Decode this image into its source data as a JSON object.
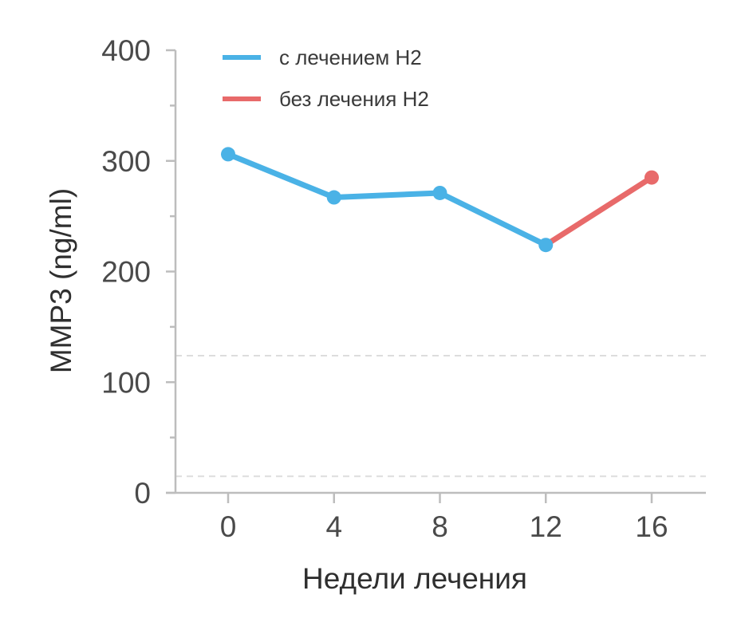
{
  "chart_data": {
    "type": "line",
    "xlabel": "Недели лечения",
    "ylabel": "MMP3 (ng/ml)",
    "x": [
      0,
      4,
      8,
      12,
      16
    ],
    "x_ticks": [
      "0",
      "4",
      "8",
      "12",
      "16"
    ],
    "xlim": [
      -2.3,
      18
    ],
    "ylim": [
      0,
      400
    ],
    "y_ticks": [
      "0",
      "100",
      "200",
      "300",
      "400"
    ],
    "y_tick_values": [
      0,
      100,
      200,
      300,
      400
    ],
    "y_minor_ticks": [
      50,
      150,
      250,
      350
    ],
    "reference_lines": [
      124,
      15
    ],
    "grid": false,
    "legend_position": "top-left",
    "series": [
      {
        "name": "с лечением H2",
        "color": "#4ab2e6",
        "x": [
          0,
          4,
          8,
          12
        ],
        "values": [
          306,
          267,
          271,
          224
        ]
      },
      {
        "name": "без лечения H2",
        "color": "#e86a6a",
        "x": [
          12,
          16
        ],
        "values": [
          224,
          285
        ]
      }
    ]
  }
}
